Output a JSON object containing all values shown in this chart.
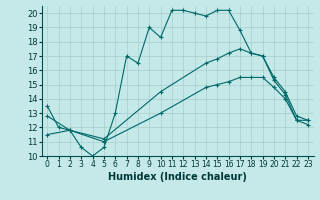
{
  "xlabel": "Humidex (Indice chaleur)",
  "background_color": "#c5e8e8",
  "grid_color": "#a8cece",
  "line_color": "#006868",
  "xlim": [
    -0.5,
    23.5
  ],
  "ylim": [
    10,
    20.5
  ],
  "yticks": [
    10,
    11,
    12,
    13,
    14,
    15,
    16,
    17,
    18,
    19,
    20
  ],
  "xticks": [
    0,
    1,
    2,
    3,
    4,
    5,
    6,
    7,
    8,
    9,
    10,
    11,
    12,
    13,
    14,
    15,
    16,
    17,
    18,
    19,
    20,
    21,
    22,
    23
  ],
  "xtick_labels": [
    "0",
    "1",
    "2",
    "3",
    "4",
    "5",
    "6",
    "7",
    "8",
    "9",
    "10",
    "11",
    "12",
    "13",
    "14",
    "15",
    "16",
    "17",
    "18",
    "19",
    "20",
    "21",
    "22",
    "23"
  ],
  "line1_x": [
    0,
    1,
    2,
    3,
    4,
    5,
    6,
    7,
    8,
    9,
    10,
    11,
    12,
    13,
    14,
    15,
    16,
    17,
    18,
    19,
    20,
    21,
    22,
    23
  ],
  "line1_y": [
    13.5,
    12.0,
    11.8,
    10.6,
    10.0,
    10.6,
    13.0,
    17.0,
    16.5,
    19.0,
    18.3,
    20.2,
    20.2,
    20.0,
    19.8,
    20.2,
    20.2,
    18.8,
    17.2,
    17.0,
    15.3,
    14.3,
    12.5,
    12.5
  ],
  "line2_x": [
    0,
    2,
    5,
    10,
    14,
    15,
    16,
    17,
    18,
    19,
    20,
    21,
    22,
    23
  ],
  "line2_y": [
    12.8,
    11.8,
    11.2,
    14.5,
    16.5,
    16.8,
    17.2,
    17.5,
    17.2,
    17.0,
    15.5,
    14.5,
    12.8,
    12.5
  ],
  "line3_x": [
    0,
    2,
    5,
    10,
    14,
    15,
    16,
    17,
    18,
    19,
    20,
    21,
    22,
    23
  ],
  "line3_y": [
    11.5,
    11.8,
    11.0,
    13.0,
    14.8,
    15.0,
    15.2,
    15.5,
    15.5,
    15.5,
    14.8,
    14.0,
    12.5,
    12.2
  ]
}
